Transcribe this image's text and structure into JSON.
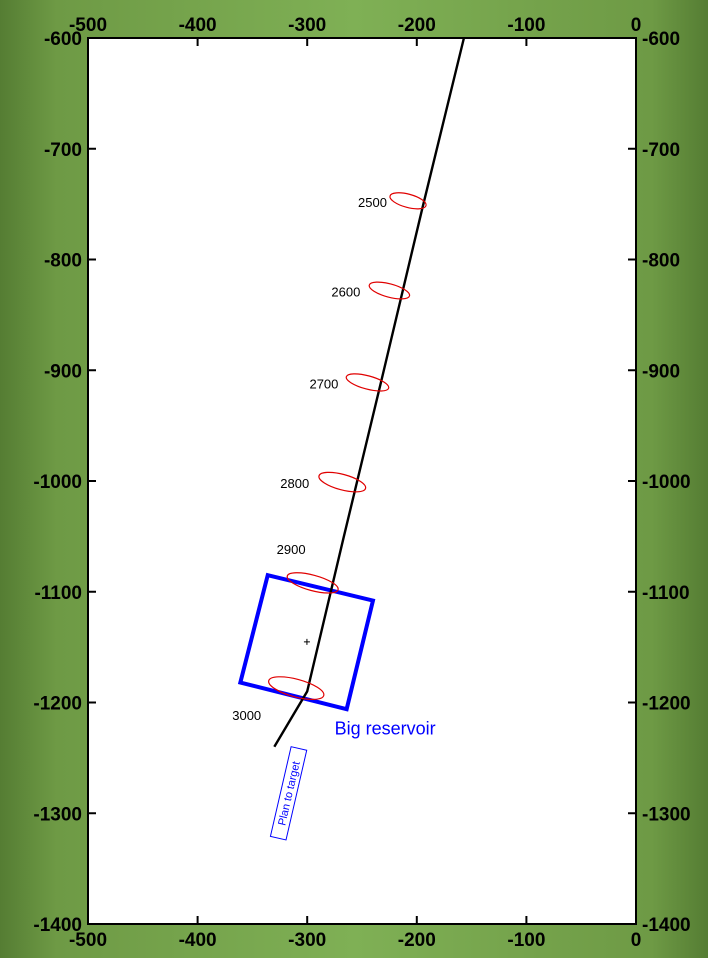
{
  "chart_data": {
    "type": "line",
    "title": "",
    "xlabel": "",
    "ylabel": "",
    "xlim": [
      -500,
      0
    ],
    "ylim": [
      -1400,
      -600
    ],
    "x_ticks": [
      "-500",
      "-400",
      "-300",
      "-200",
      "-100",
      "0"
    ],
    "y_ticks": [
      "-600",
      "-700",
      "-800",
      "-900",
      "-1000",
      "-1100",
      "-1200",
      "-1300",
      "-1400"
    ],
    "grid": false,
    "series": [
      {
        "type": "line",
        "color": "#000000",
        "x": [
          -157,
          -195,
          -232,
          -267,
          -300,
          -330
        ],
        "y": [
          -600,
          -754,
          -908,
          -1052,
          -1190,
          -1240
        ]
      }
    ],
    "uncertainty_ellipses": [
      {
        "label": "2500",
        "x": -208,
        "y": -747,
        "rx": 17,
        "ry": 6,
        "angle": 15
      },
      {
        "label": "2600",
        "x": -225,
        "y": -828,
        "rx": 19,
        "ry": 6,
        "angle": 15
      },
      {
        "label": "2700",
        "x": -245,
        "y": -911,
        "rx": 20,
        "ry": 6,
        "angle": 15
      },
      {
        "label": "2800",
        "x": -268,
        "y": -1001,
        "rx": 22,
        "ry": 7,
        "angle": 15
      },
      {
        "label": "2900",
        "x": -295,
        "y": -1092,
        "rx": 24,
        "ry": 7,
        "angle": 15
      },
      {
        "label": "3000",
        "x": -310,
        "y": -1187,
        "rx": 26,
        "ry": 8,
        "angle": 15
      }
    ],
    "target_box": {
      "label": "Big reservoir",
      "color": "#0000ff",
      "corners": [
        [
          -336,
          -1085
        ],
        [
          -240,
          -1108
        ],
        [
          -264,
          -1206
        ],
        [
          -361,
          -1182
        ]
      ]
    },
    "annotations": [
      {
        "text": "Plan to target",
        "color": "#0000ff",
        "x": -317,
        "y": -1282,
        "rotation": -77
      }
    ]
  }
}
